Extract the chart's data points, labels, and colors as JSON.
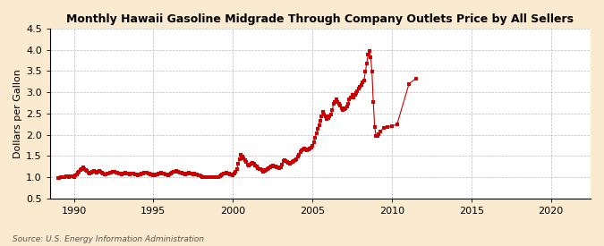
{
  "title": "Monthly Hawaii Gasoline Midgrade Through Company Outlets Price by All Sellers",
  "ylabel": "Dollars per Gallon",
  "source": "Source: U.S. Energy Information Administration",
  "fig_background_color": "#faebd0",
  "plot_background_color": "#ffffff",
  "line_color": "#cc0000",
  "grid_color": "#bbbbbb",
  "xlim": [
    1988.5,
    2022.5
  ],
  "ylim": [
    0.5,
    4.5
  ],
  "yticks": [
    0.5,
    1.0,
    1.5,
    2.0,
    2.5,
    3.0,
    3.5,
    4.0,
    4.5
  ],
  "xticks": [
    1990,
    1995,
    2000,
    2005,
    2010,
    2015,
    2020
  ],
  "marker_size": 2.5,
  "data": [
    [
      1989.0,
      0.97
    ],
    [
      1989.08,
      0.98
    ],
    [
      1989.17,
      0.99
    ],
    [
      1989.25,
      1.0
    ],
    [
      1989.33,
      1.01
    ],
    [
      1989.42,
      1.01
    ],
    [
      1989.5,
      1.02
    ],
    [
      1989.58,
      1.02
    ],
    [
      1989.67,
      1.01
    ],
    [
      1989.75,
      1.02
    ],
    [
      1989.83,
      1.03
    ],
    [
      1989.92,
      1.02
    ],
    [
      1990.0,
      1.0
    ],
    [
      1990.08,
      1.04
    ],
    [
      1990.17,
      1.07
    ],
    [
      1990.25,
      1.1
    ],
    [
      1990.33,
      1.13
    ],
    [
      1990.42,
      1.16
    ],
    [
      1990.5,
      1.2
    ],
    [
      1990.58,
      1.24
    ],
    [
      1990.67,
      1.2
    ],
    [
      1990.75,
      1.16
    ],
    [
      1990.83,
      1.14
    ],
    [
      1990.92,
      1.1
    ],
    [
      1991.0,
      1.09
    ],
    [
      1991.08,
      1.11
    ],
    [
      1991.17,
      1.13
    ],
    [
      1991.25,
      1.14
    ],
    [
      1991.33,
      1.12
    ],
    [
      1991.42,
      1.11
    ],
    [
      1991.5,
      1.13
    ],
    [
      1991.58,
      1.14
    ],
    [
      1991.67,
      1.12
    ],
    [
      1991.75,
      1.11
    ],
    [
      1991.83,
      1.09
    ],
    [
      1991.92,
      1.07
    ],
    [
      1992.0,
      1.07
    ],
    [
      1992.08,
      1.08
    ],
    [
      1992.17,
      1.09
    ],
    [
      1992.25,
      1.1
    ],
    [
      1992.33,
      1.11
    ],
    [
      1992.42,
      1.12
    ],
    [
      1992.5,
      1.13
    ],
    [
      1992.58,
      1.12
    ],
    [
      1992.67,
      1.11
    ],
    [
      1992.75,
      1.1
    ],
    [
      1992.83,
      1.09
    ],
    [
      1992.92,
      1.08
    ],
    [
      1993.0,
      1.07
    ],
    [
      1993.08,
      1.08
    ],
    [
      1993.17,
      1.09
    ],
    [
      1993.25,
      1.1
    ],
    [
      1993.33,
      1.09
    ],
    [
      1993.42,
      1.08
    ],
    [
      1993.5,
      1.07
    ],
    [
      1993.58,
      1.08
    ],
    [
      1993.67,
      1.09
    ],
    [
      1993.75,
      1.08
    ],
    [
      1993.83,
      1.07
    ],
    [
      1993.92,
      1.06
    ],
    [
      1994.0,
      1.05
    ],
    [
      1994.08,
      1.06
    ],
    [
      1994.17,
      1.07
    ],
    [
      1994.25,
      1.08
    ],
    [
      1994.33,
      1.09
    ],
    [
      1994.42,
      1.1
    ],
    [
      1994.5,
      1.11
    ],
    [
      1994.58,
      1.1
    ],
    [
      1994.67,
      1.09
    ],
    [
      1994.75,
      1.08
    ],
    [
      1994.83,
      1.07
    ],
    [
      1994.92,
      1.06
    ],
    [
      1995.0,
      1.04
    ],
    [
      1995.08,
      1.05
    ],
    [
      1995.17,
      1.06
    ],
    [
      1995.25,
      1.07
    ],
    [
      1995.33,
      1.08
    ],
    [
      1995.42,
      1.09
    ],
    [
      1995.5,
      1.1
    ],
    [
      1995.58,
      1.09
    ],
    [
      1995.67,
      1.08
    ],
    [
      1995.75,
      1.07
    ],
    [
      1995.83,
      1.06
    ],
    [
      1995.92,
      1.05
    ],
    [
      1996.0,
      1.06
    ],
    [
      1996.08,
      1.08
    ],
    [
      1996.17,
      1.1
    ],
    [
      1996.25,
      1.12
    ],
    [
      1996.33,
      1.13
    ],
    [
      1996.42,
      1.14
    ],
    [
      1996.5,
      1.13
    ],
    [
      1996.58,
      1.12
    ],
    [
      1996.67,
      1.11
    ],
    [
      1996.75,
      1.1
    ],
    [
      1996.83,
      1.09
    ],
    [
      1996.92,
      1.08
    ],
    [
      1997.0,
      1.07
    ],
    [
      1997.08,
      1.08
    ],
    [
      1997.17,
      1.09
    ],
    [
      1997.25,
      1.1
    ],
    [
      1997.33,
      1.09
    ],
    [
      1997.42,
      1.08
    ],
    [
      1997.5,
      1.07
    ],
    [
      1997.58,
      1.08
    ],
    [
      1997.67,
      1.07
    ],
    [
      1997.75,
      1.06
    ],
    [
      1997.83,
      1.05
    ],
    [
      1997.92,
      1.04
    ],
    [
      1998.0,
      1.02
    ],
    [
      1998.08,
      1.01
    ],
    [
      1998.17,
      1.0
    ],
    [
      1998.25,
      1.0
    ],
    [
      1998.33,
      0.99
    ],
    [
      1998.42,
      1.0
    ],
    [
      1998.5,
      1.01
    ],
    [
      1998.58,
      1.0
    ],
    [
      1998.67,
      0.99
    ],
    [
      1998.75,
      0.99
    ],
    [
      1998.83,
      0.99
    ],
    [
      1998.92,
      0.99
    ],
    [
      1999.0,
      0.99
    ],
    [
      1999.08,
      1.0
    ],
    [
      1999.17,
      1.02
    ],
    [
      1999.25,
      1.04
    ],
    [
      1999.33,
      1.06
    ],
    [
      1999.42,
      1.08
    ],
    [
      1999.5,
      1.09
    ],
    [
      1999.58,
      1.1
    ],
    [
      1999.67,
      1.09
    ],
    [
      1999.75,
      1.08
    ],
    [
      1999.83,
      1.07
    ],
    [
      1999.92,
      1.06
    ],
    [
      2000.0,
      1.04
    ],
    [
      2000.08,
      1.08
    ],
    [
      2000.17,
      1.12
    ],
    [
      2000.25,
      1.2
    ],
    [
      2000.33,
      1.32
    ],
    [
      2000.42,
      1.42
    ],
    [
      2000.5,
      1.52
    ],
    [
      2000.58,
      1.48
    ],
    [
      2000.67,
      1.44
    ],
    [
      2000.75,
      1.4
    ],
    [
      2000.83,
      1.36
    ],
    [
      2000.92,
      1.3
    ],
    [
      2001.0,
      1.28
    ],
    [
      2001.08,
      1.3
    ],
    [
      2001.17,
      1.32
    ],
    [
      2001.25,
      1.33
    ],
    [
      2001.33,
      1.31
    ],
    [
      2001.42,
      1.28
    ],
    [
      2001.5,
      1.25
    ],
    [
      2001.58,
      1.22
    ],
    [
      2001.67,
      1.2
    ],
    [
      2001.75,
      1.18
    ],
    [
      2001.83,
      1.16
    ],
    [
      2001.92,
      1.13
    ],
    [
      2002.0,
      1.14
    ],
    [
      2002.08,
      1.17
    ],
    [
      2002.17,
      1.19
    ],
    [
      2002.25,
      1.21
    ],
    [
      2002.33,
      1.24
    ],
    [
      2002.42,
      1.26
    ],
    [
      2002.5,
      1.27
    ],
    [
      2002.58,
      1.26
    ],
    [
      2002.67,
      1.25
    ],
    [
      2002.75,
      1.24
    ],
    [
      2002.83,
      1.23
    ],
    [
      2002.92,
      1.21
    ],
    [
      2003.0,
      1.24
    ],
    [
      2003.08,
      1.29
    ],
    [
      2003.17,
      1.37
    ],
    [
      2003.25,
      1.4
    ],
    [
      2003.33,
      1.38
    ],
    [
      2003.42,
      1.36
    ],
    [
      2003.5,
      1.33
    ],
    [
      2003.58,
      1.31
    ],
    [
      2003.67,
      1.33
    ],
    [
      2003.75,
      1.36
    ],
    [
      2003.83,
      1.38
    ],
    [
      2003.92,
      1.4
    ],
    [
      2004.0,
      1.43
    ],
    [
      2004.08,
      1.48
    ],
    [
      2004.17,
      1.53
    ],
    [
      2004.25,
      1.58
    ],
    [
      2004.33,
      1.63
    ],
    [
      2004.42,
      1.66
    ],
    [
      2004.5,
      1.68
    ],
    [
      2004.58,
      1.66
    ],
    [
      2004.67,
      1.63
    ],
    [
      2004.75,
      1.66
    ],
    [
      2004.83,
      1.68
    ],
    [
      2004.92,
      1.7
    ],
    [
      2005.0,
      1.73
    ],
    [
      2005.08,
      1.83
    ],
    [
      2005.17,
      1.93
    ],
    [
      2005.25,
      2.03
    ],
    [
      2005.33,
      2.13
    ],
    [
      2005.42,
      2.23
    ],
    [
      2005.5,
      2.33
    ],
    [
      2005.58,
      2.43
    ],
    [
      2005.67,
      2.53
    ],
    [
      2005.75,
      2.48
    ],
    [
      2005.83,
      2.43
    ],
    [
      2005.92,
      2.38
    ],
    [
      2006.0,
      2.4
    ],
    [
      2006.08,
      2.43
    ],
    [
      2006.17,
      2.48
    ],
    [
      2006.25,
      2.58
    ],
    [
      2006.33,
      2.73
    ],
    [
      2006.42,
      2.78
    ],
    [
      2006.5,
      2.83
    ],
    [
      2006.58,
      2.78
    ],
    [
      2006.67,
      2.73
    ],
    [
      2006.75,
      2.68
    ],
    [
      2006.83,
      2.63
    ],
    [
      2006.92,
      2.58
    ],
    [
      2007.0,
      2.6
    ],
    [
      2007.08,
      2.63
    ],
    [
      2007.17,
      2.66
    ],
    [
      2007.25,
      2.73
    ],
    [
      2007.33,
      2.83
    ],
    [
      2007.42,
      2.88
    ],
    [
      2007.5,
      2.93
    ],
    [
      2007.58,
      2.88
    ],
    [
      2007.67,
      2.93
    ],
    [
      2007.75,
      2.98
    ],
    [
      2007.83,
      3.03
    ],
    [
      2007.92,
      3.08
    ],
    [
      2008.0,
      3.13
    ],
    [
      2008.08,
      3.18
    ],
    [
      2008.17,
      3.23
    ],
    [
      2008.25,
      3.28
    ],
    [
      2008.33,
      3.48
    ],
    [
      2008.42,
      3.68
    ],
    [
      2008.5,
      3.88
    ],
    [
      2008.58,
      3.98
    ],
    [
      2008.67,
      3.83
    ],
    [
      2008.75,
      3.48
    ],
    [
      2008.83,
      2.78
    ],
    [
      2008.92,
      2.18
    ],
    [
      2009.0,
      1.97
    ],
    [
      2009.08,
      1.98
    ],
    [
      2009.17,
      2.02
    ],
    [
      2009.25,
      2.08
    ],
    [
      2009.5,
      2.15
    ],
    [
      2009.75,
      2.18
    ],
    [
      2010.0,
      2.2
    ],
    [
      2010.33,
      2.25
    ],
    [
      2011.08,
      3.2
    ],
    [
      2011.5,
      3.32
    ]
  ]
}
